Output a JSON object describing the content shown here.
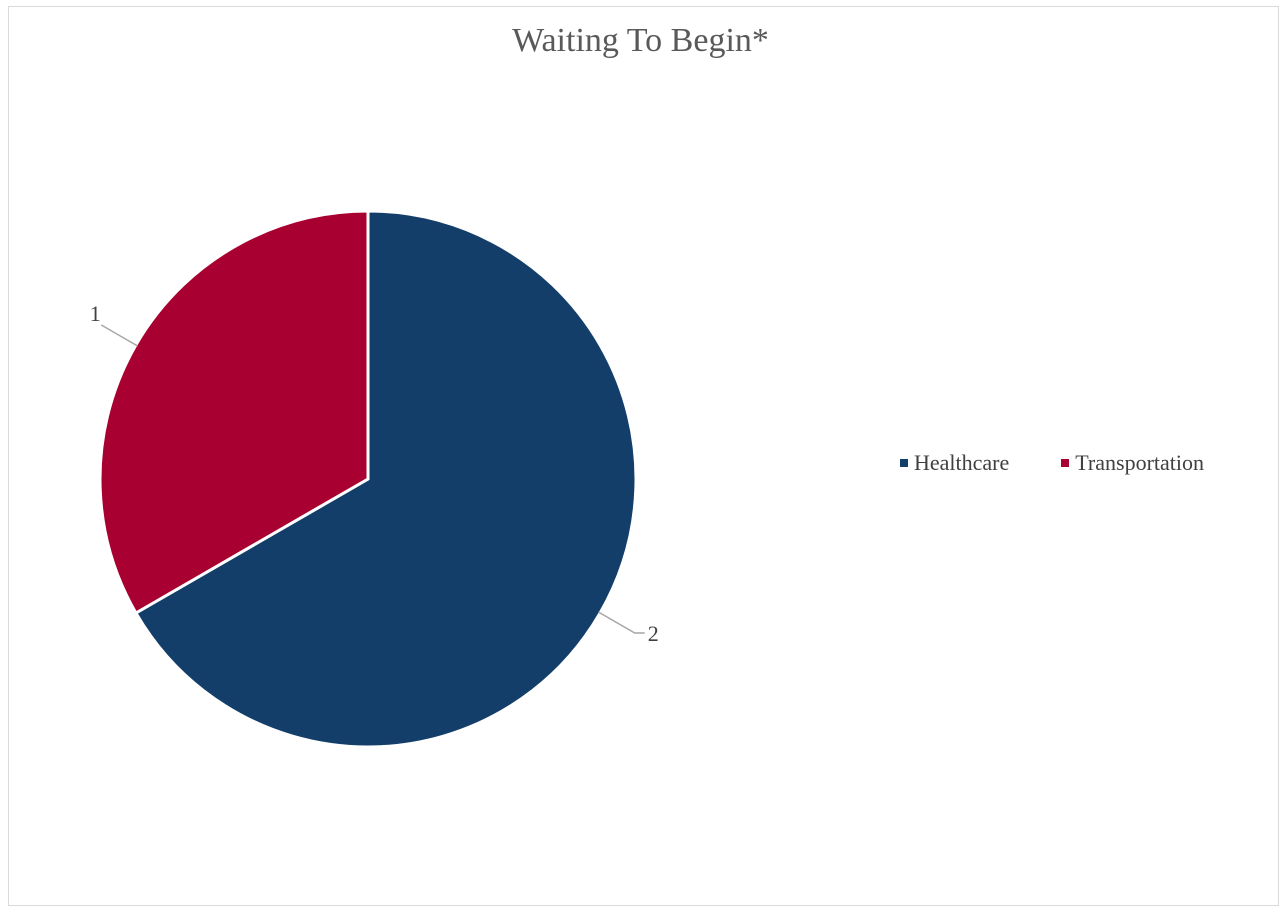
{
  "chart_data": {
    "type": "pie",
    "title": "Waiting To Begin*",
    "categories": [
      "Healthcare",
      "Transportation"
    ],
    "values": [
      2,
      1
    ],
    "colors": [
      "#133e69",
      "#a80030"
    ],
    "data_labels": [
      "2",
      "1"
    ],
    "legend_position": "right",
    "start_angle_deg": 0
  }
}
